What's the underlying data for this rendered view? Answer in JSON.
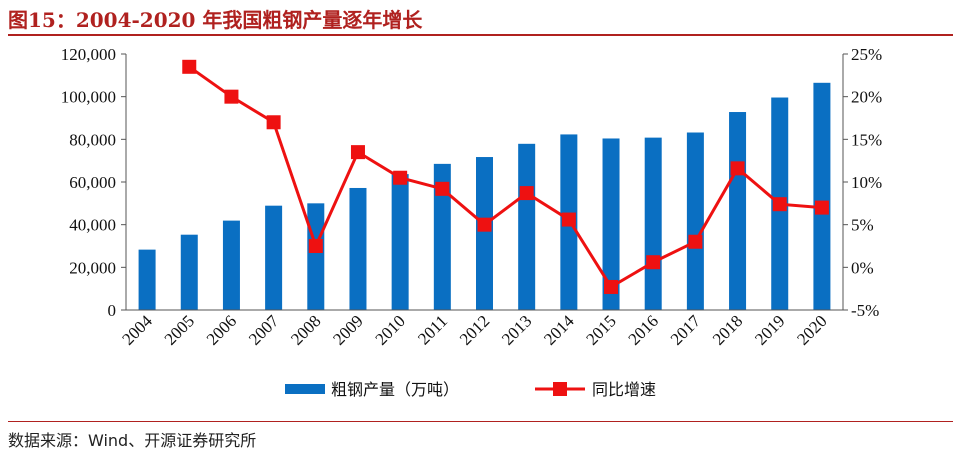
{
  "header": {
    "title": "图15：2004-2020 年我国粗钢产量逐年增长"
  },
  "footer": {
    "source": "数据来源：Wind、开源证券研究所"
  },
  "colors": {
    "bar": "#0a6fc2",
    "line": "#ee1111",
    "title": "#b0211f"
  },
  "chart_data": {
    "type": "bar",
    "title": "",
    "categories": [
      "2004",
      "2005",
      "2006",
      "2007",
      "2008",
      "2009",
      "2010",
      "2011",
      "2012",
      "2013",
      "2014",
      "2015",
      "2016",
      "2017",
      "2018",
      "2019",
      "2020"
    ],
    "series": [
      {
        "name": "粗钢产量（万吨）",
        "type": "bar",
        "axis": "left",
        "values": [
          28300,
          35300,
          41900,
          48900,
          50000,
          57200,
          63700,
          68500,
          71700,
          77900,
          82300,
          80400,
          80800,
          83200,
          92800,
          99600,
          106500
        ]
      },
      {
        "name": "同比增速",
        "type": "line",
        "axis": "right",
        "values": [
          null,
          23.5,
          20.0,
          17.0,
          2.5,
          13.5,
          10.5,
          9.2,
          5.0,
          8.7,
          5.6,
          -2.3,
          0.6,
          3.0,
          11.6,
          7.4,
          7.0
        ]
      }
    ],
    "y_left": {
      "min": 0,
      "max": 120000,
      "ticks": [
        "0",
        "20,000",
        "40,000",
        "60,000",
        "80,000",
        "100,000",
        "120,000"
      ]
    },
    "y_right": {
      "min": -5,
      "max": 25,
      "ticks": [
        "-5%",
        "0%",
        "5%",
        "10%",
        "15%",
        "20%",
        "25%"
      ]
    },
    "legend": "bottom",
    "grid": false
  }
}
